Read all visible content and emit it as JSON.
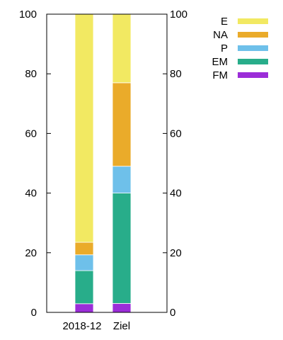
{
  "chart_data": {
    "type": "bar",
    "stacked": true,
    "percent": true,
    "title": "",
    "xlabel": "",
    "ylabel": "",
    "ylim": [
      0,
      100
    ],
    "yticks": [
      0,
      20,
      40,
      60,
      80,
      100
    ],
    "y_axis_mirrored_right": true,
    "grid": false,
    "legend_position": "top-right",
    "categories": [
      "2018-12",
      "Ziel"
    ],
    "series": [
      {
        "name": "FM",
        "color": "#9b2dd8",
        "values": [
          2.9,
          3.0
        ]
      },
      {
        "name": "EM",
        "color": "#28ad8a",
        "values": [
          11.1,
          37.0
        ]
      },
      {
        "name": "P",
        "color": "#6ec0ea",
        "values": [
          5.3,
          9.0
        ]
      },
      {
        "name": "NA",
        "color": "#eaab2a",
        "values": [
          4.2,
          28.0
        ]
      },
      {
        "name": "E",
        "color": "#f2e962",
        "values": [
          76.5,
          23.0
        ]
      }
    ],
    "legend_order": [
      "E",
      "NA",
      "P",
      "EM",
      "FM"
    ]
  }
}
